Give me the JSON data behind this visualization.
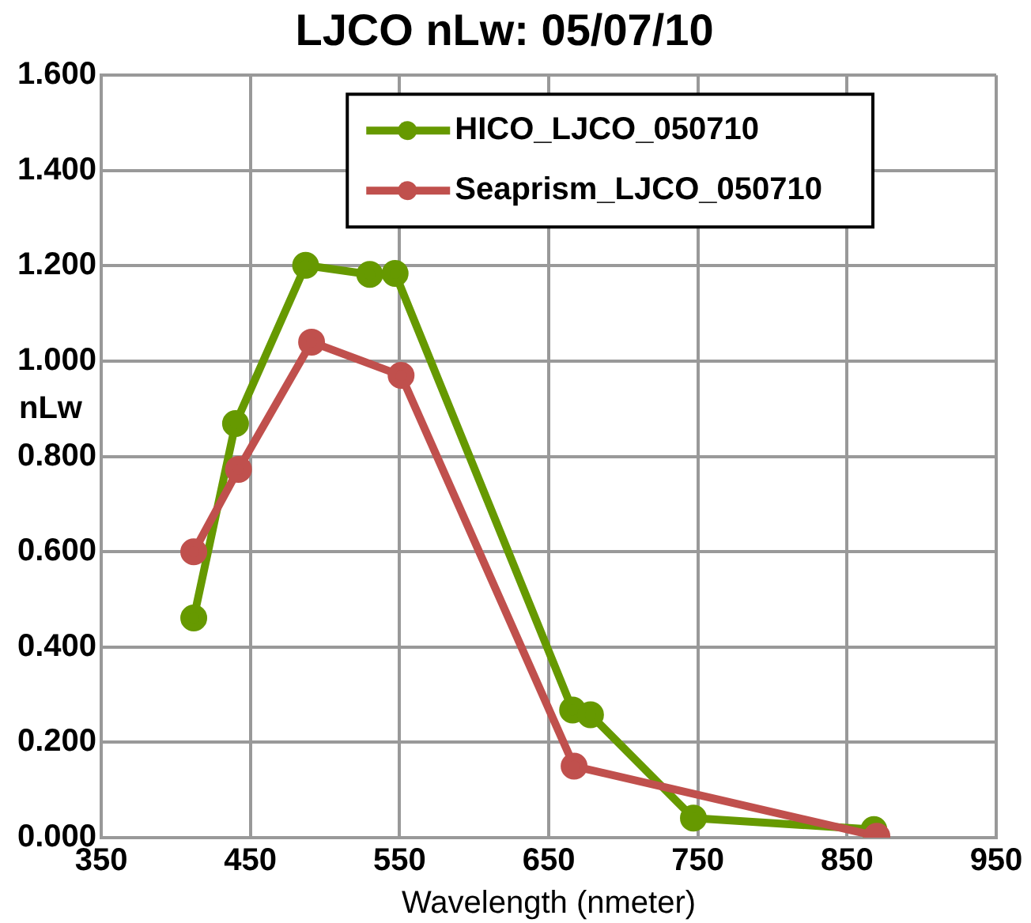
{
  "chart_data": {
    "type": "line",
    "title": "LJCO nLw: 05/07/10",
    "xlabel": "Wavelength (nmeter)",
    "ylabel": "nLw",
    "series": [
      {
        "name": "HICO_LJCO_050710",
        "color": "#669900",
        "x": [
          412,
          440,
          487,
          530,
          547,
          666,
          678,
          747,
          868
        ],
        "values": [
          0.461,
          0.869,
          1.201,
          1.182,
          1.184,
          0.268,
          0.258,
          0.041,
          0.017
        ]
      },
      {
        "name": "Seaprism_LJCO_050710",
        "color": "#c0504d",
        "x": [
          412,
          442,
          491,
          551,
          667,
          870
        ],
        "values": [
          0.6,
          0.773,
          1.04,
          0.97,
          0.15,
          0.003
        ]
      }
    ],
    "xlim": [
      350,
      950
    ],
    "xticks": [
      350,
      450,
      550,
      650,
      750,
      850,
      950
    ],
    "ylim": [
      0,
      1.6
    ],
    "yticks": [
      {
        "value": 0,
        "label": "0.000"
      },
      {
        "value": 0.2,
        "label": "0.200"
      },
      {
        "value": 0.4,
        "label": "0.400"
      },
      {
        "value": 0.6,
        "label": "0.600"
      },
      {
        "value": 0.8,
        "label": "0.800"
      },
      {
        "value": 1.0,
        "label": "1.000"
      },
      {
        "value": 1.2,
        "label": "1.200"
      },
      {
        "value": 1.4,
        "label": "1.400"
      },
      {
        "value": 1.6,
        "label": "1.600"
      }
    ],
    "grid": true,
    "legend": "top right",
    "marker": "circle",
    "line_style": "solid"
  }
}
